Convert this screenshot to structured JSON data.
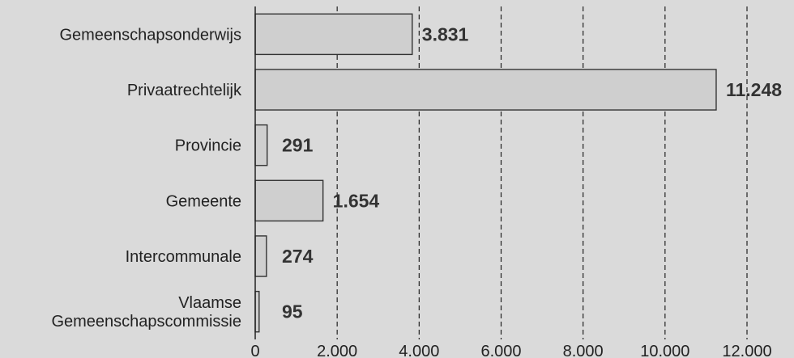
{
  "chart_data": {
    "type": "bar",
    "orientation": "horizontal",
    "categories": [
      "Gemeenschapsonderwijs",
      "Privaatrechtelijk",
      "Provincie",
      "Gemeente",
      "Intercommunale",
      "Vlaamse Gemeenschapscommissie"
    ],
    "category_lines": [
      [
        "Gemeenschapsonderwijs"
      ],
      [
        "Privaatrechtelijk"
      ],
      [
        "Provincie"
      ],
      [
        "Gemeente"
      ],
      [
        "Intercommunale"
      ],
      [
        "Vlaamse",
        "Gemeenschapscommissie"
      ]
    ],
    "values": [
      3831,
      11248,
      291,
      1654,
      274,
      95
    ],
    "value_labels": [
      "3.831",
      "11.248",
      "291",
      "1.654",
      "274",
      "95"
    ],
    "xlim": [
      0,
      12000
    ],
    "xticks": [
      0,
      2000,
      4000,
      6000,
      8000,
      10000,
      12000
    ],
    "xtick_labels": [
      "0",
      "2.000",
      "4.000",
      "6.000",
      "8.000",
      "10.000",
      "12.000"
    ],
    "grid": "vertical-dashed",
    "title": "",
    "xlabel": "",
    "ylabel": "",
    "colors": {
      "background": "#dadada",
      "bar_fill": "#cfcfcf",
      "bar_stroke": "#333333",
      "grid": "#222222",
      "axis": "#222222"
    }
  }
}
